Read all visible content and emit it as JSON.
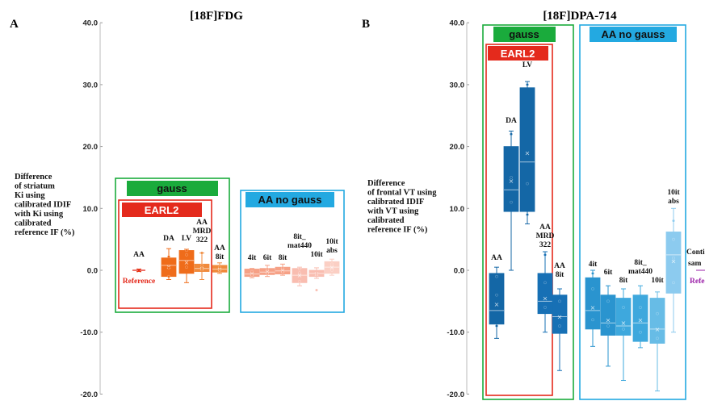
{
  "chart_data": [
    {
      "type": "box",
      "panel_label": "A",
      "title": "[18F]FDG",
      "ylabel_lines": [
        "Difference",
        "of striatum",
        "Ki using",
        "calibrated IDIF",
        "with Ki using",
        "calibrated",
        "reference IF (%)"
      ],
      "ylim": [
        -20,
        40
      ],
      "yticks": [
        "40.0",
        "30.0",
        "20.0",
        "10.0",
        "0.0",
        "-10.0",
        "-20.0"
      ],
      "groups": [
        {
          "label": "gauss",
          "color": "#1aab3c"
        },
        {
          "label": "EARL2",
          "color": "#e42a1c"
        },
        {
          "label": "AA no gauss",
          "color": "#23a9e1"
        }
      ],
      "reference_label": "Reference",
      "boxes": [
        {
          "label_lines": [
            "AA"
          ],
          "color": "#e84a1a",
          "reference": true,
          "q1": 0,
          "median": 0,
          "q3": 0,
          "whisker_low": -0.2,
          "whisker_high": 0.2,
          "mean": 0,
          "points": [
            0
          ]
        },
        {
          "label_lines": [
            "DA"
          ],
          "color": "#ef6c1a",
          "q1": -1.0,
          "median": 0.8,
          "q3": 2.0,
          "whisker_low": -1.5,
          "whisker_high": 3.5,
          "mean": 0.6,
          "points": [
            -1.0,
            0.4,
            2.2
          ]
        },
        {
          "label_lines": [
            "LV"
          ],
          "color": "#ef6c1a",
          "q1": -0.5,
          "median": 1.6,
          "q3": 3.2,
          "whisker_low": -2.0,
          "whisker_high": 3.4,
          "mean": 1.3,
          "points": [
            0.5,
            2.5,
            3.2
          ]
        },
        {
          "label_lines": [
            "AA",
            "MRD",
            "322"
          ],
          "color": "#f08a3c",
          "q1": -0.2,
          "median": 0.3,
          "q3": 1.0,
          "whisker_low": -1.5,
          "whisker_high": 2.8,
          "mean": 0.3,
          "points": [
            0.2,
            0.8,
            2.8
          ]
        },
        {
          "label_lines": [
            "AA",
            "8it"
          ],
          "color": "#f08a3c",
          "q1": -0.3,
          "median": 0.2,
          "q3": 0.8,
          "whisker_low": -0.5,
          "whisker_high": 1.2,
          "mean": 0.2,
          "points": [
            0.0,
            0.5
          ]
        },
        {
          "label_lines": [
            "4it"
          ],
          "color": "#f6a186",
          "q1": -1.0,
          "median": -0.6,
          "q3": 0.2,
          "whisker_low": -1.2,
          "whisker_high": 0.3,
          "mean": -0.5,
          "points": [
            -0.8,
            -0.2
          ]
        },
        {
          "label_lines": [
            "6it"
          ],
          "color": "#f6a186",
          "q1": -0.7,
          "median": -0.3,
          "q3": 0.3,
          "whisker_low": -1.0,
          "whisker_high": 0.8,
          "mean": -0.2,
          "points": [
            -0.5,
            0.2
          ]
        },
        {
          "label_lines": [
            "8it"
          ],
          "color": "#f6a186",
          "q1": -0.6,
          "median": -0.1,
          "q3": 0.5,
          "whisker_low": -0.8,
          "whisker_high": 1.0,
          "mean": 0.0,
          "points": [
            -0.3,
            0.4
          ]
        },
        {
          "label_lines": [
            "8it_",
            "mat440"
          ],
          "color": "#f9bdb0",
          "q1": -2.0,
          "median": -0.8,
          "q3": 0.3,
          "whisker_low": -2.5,
          "whisker_high": 0.5,
          "mean": -0.8,
          "points": [
            -1.8,
            -0.4,
            0.2
          ]
        },
        {
          "label_lines": [
            "10it"
          ],
          "color": "#f9bdb0",
          "q1": -1.0,
          "median": -0.5,
          "q3": 0.0,
          "whisker_low": -1.3,
          "whisker_high": 0.4,
          "mean": -0.5,
          "points": [
            -3.2,
            -0.6
          ]
        },
        {
          "label_lines": [
            "10it",
            "abs"
          ],
          "color": "#fbcfc4",
          "q1": -0.5,
          "median": 0.5,
          "q3": 1.4,
          "whisker_low": -0.8,
          "whisker_high": 1.8,
          "mean": 0.5,
          "points": [
            0.0,
            1.0
          ]
        }
      ]
    },
    {
      "type": "box",
      "panel_label": "B",
      "title": "[18F]DPA-714",
      "ylabel_lines": [
        "Difference",
        "of  frontal VT using",
        "calibrated IDIF",
        "with VT using",
        "calibrated",
        "reference IF (%)"
      ],
      "ylim": [
        -20,
        40
      ],
      "yticks": [
        "40.0",
        "30.0",
        "20.0",
        "10.0",
        "0.0",
        "-10.0",
        "-20.0"
      ],
      "groups": [
        {
          "label": "gauss",
          "color": "#1aab3c"
        },
        {
          "label": "EARL2",
          "color": "#e42a1c"
        },
        {
          "label": "AA no gauss",
          "color": "#23a9e1"
        }
      ],
      "note_lines": [
        "Conti",
        "sam"
      ],
      "note_ref": "Refe",
      "boxes": [
        {
          "label_lines": [
            "AA"
          ],
          "color": "#1467a6",
          "q1": -8.7,
          "median": -6.5,
          "q3": -0.5,
          "whisker_low": -11.0,
          "whisker_high": 0.5,
          "mean": -5.5,
          "points": [
            -9.0,
            -4.0,
            -1.0
          ]
        },
        {
          "label_lines": [
            "DA"
          ],
          "color": "#1467a6",
          "q1": 9.5,
          "median": 13.0,
          "q3": 20.0,
          "whisker_low": 0.0,
          "whisker_high": 22.5,
          "mean": 14.5,
          "points": [
            11.0,
            15.0,
            22.0
          ]
        },
        {
          "label_lines": [
            "LV"
          ],
          "color": "#1467a6",
          "q1": 9.5,
          "median": 17.5,
          "q3": 29.5,
          "whisker_low": 7.5,
          "whisker_high": 30.5,
          "mean": 19.0,
          "points": [
            9.0,
            14.0,
            30.0
          ]
        },
        {
          "label_lines": [
            "AA",
            "MRD",
            "322"
          ],
          "color": "#1770b5",
          "q1": -7.0,
          "median": -5.0,
          "q3": -0.5,
          "whisker_low": -10.0,
          "whisker_high": 3.0,
          "mean": -4.5,
          "points": [
            -6.0,
            -2.0,
            2.5
          ]
        },
        {
          "label_lines": [
            "AA",
            "8it"
          ],
          "color": "#1770b5",
          "q1": -10.2,
          "median": -7.5,
          "q3": -4.0,
          "whisker_low": -16.2,
          "whisker_high": -3.0,
          "mean": -7.5,
          "points": [
            -9.0,
            -5.0
          ]
        },
        {
          "label_lines": [
            "4it"
          ],
          "color": "#2a94cf",
          "q1": -9.5,
          "median": -6.5,
          "q3": -1.2,
          "whisker_low": -12.3,
          "whisker_high": 0.0,
          "mean": -6.0,
          "points": [
            -8.0,
            -3.0,
            -0.5
          ]
        },
        {
          "label_lines": [
            "6it"
          ],
          "color": "#2a94cf",
          "q1": -10.5,
          "median": -8.5,
          "q3": -4.0,
          "whisker_low": -15.5,
          "whisker_high": -2.5,
          "mean": -8.0,
          "points": [
            -9.0,
            -5.0
          ]
        },
        {
          "label_lines": [
            "8it"
          ],
          "color": "#3ea8dd",
          "q1": -10.5,
          "median": -9.0,
          "q3": -4.5,
          "whisker_low": -17.8,
          "whisker_high": -3.0,
          "mean": -8.5,
          "points": [
            -9.5,
            -6.0
          ]
        },
        {
          "label_lines": [
            "8it_",
            "mat440"
          ],
          "color": "#3ea8dd",
          "q1": -11.5,
          "median": -8.5,
          "q3": -4.0,
          "whisker_low": -12.5,
          "whisker_high": -2.5,
          "mean": -8.0,
          "points": [
            -10.0,
            -6.0
          ]
        },
        {
          "label_lines": [
            "10it"
          ],
          "color": "#67bce6",
          "q1": -11.8,
          "median": -9.5,
          "q3": -4.5,
          "whisker_low": -19.5,
          "whisker_high": -3.5,
          "mean": -9.5,
          "points": [
            -11.0,
            -7.0
          ]
        },
        {
          "label_lines": [
            "10it",
            "abs"
          ],
          "color": "#8ccbef",
          "q1": -3.7,
          "median": 2.5,
          "q3": 6.2,
          "whisker_low": -10.0,
          "whisker_high": 10.0,
          "mean": 1.5,
          "points": [
            -2.0,
            2.0,
            5.0,
            8.0
          ]
        }
      ]
    }
  ]
}
